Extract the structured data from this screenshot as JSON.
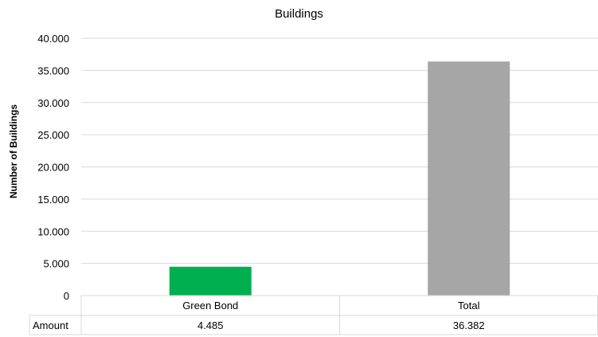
{
  "chart_data": {
    "type": "bar",
    "title": "Buildings",
    "ylabel": "Number of Buildings",
    "categories": [
      "Green Bond",
      "Total"
    ],
    "series": [
      {
        "name": "Amount",
        "values": [
          4485,
          36382
        ],
        "labels": [
          "4.485",
          "36.382"
        ]
      }
    ],
    "colors": [
      "#00b050",
      "#a6a6a6"
    ],
    "ylim": [
      0,
      40000
    ],
    "yticks": [
      0,
      5000,
      10000,
      15000,
      20000,
      25000,
      30000,
      35000,
      40000
    ],
    "ytick_labels": [
      "0",
      "5.000",
      "10.000",
      "15.000",
      "20.000",
      "25.000",
      "30.000",
      "35.000",
      "40.000"
    ],
    "grid": true,
    "data_table": true
  }
}
